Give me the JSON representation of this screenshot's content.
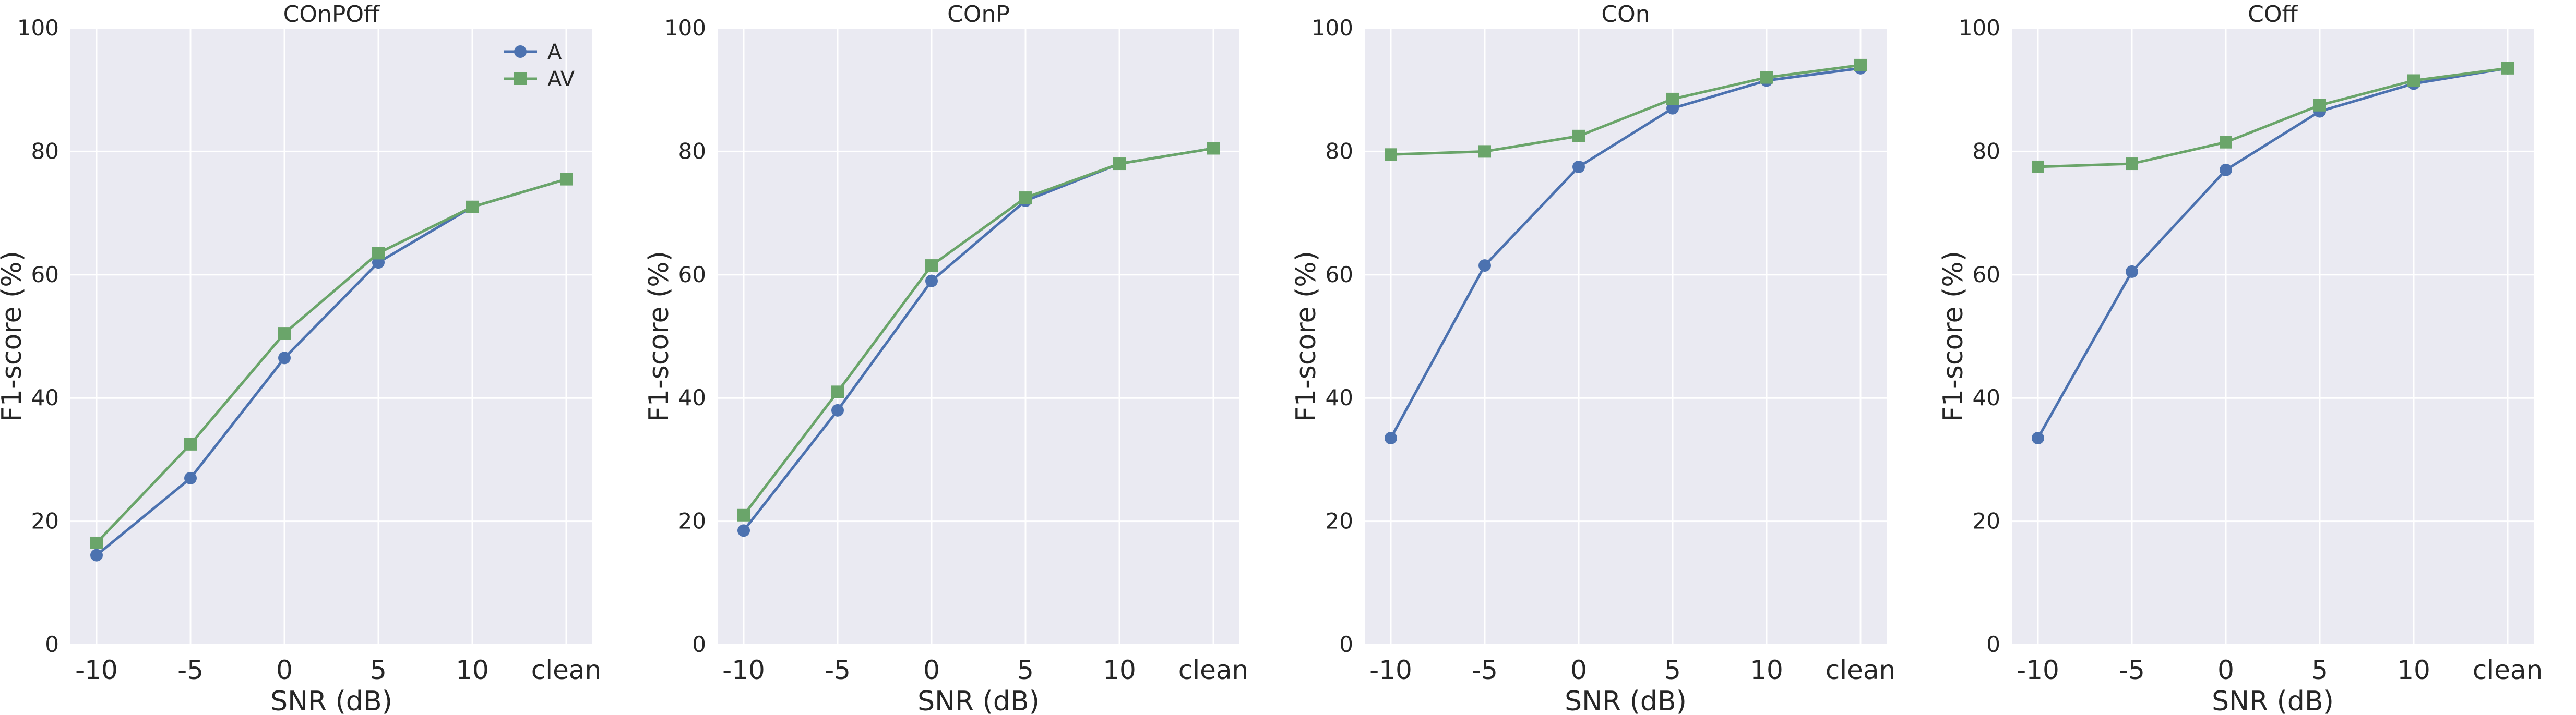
{
  "chart_data": [
    {
      "type": "line",
      "title": "COnPOff",
      "xlabel": "SNR (dB)",
      "ylabel": "F1-score (%)",
      "categories": [
        "-10",
        "-5",
        "0",
        "5",
        "10",
        "clean"
      ],
      "ylim": [
        0,
        100
      ],
      "yticks": [
        "0",
        "20",
        "40",
        "60",
        "80",
        "100"
      ],
      "grid": true,
      "legend": "top-right",
      "series": [
        {
          "name": "A",
          "marker": "circle",
          "color": "#4c72b0",
          "values": [
            14.5,
            27.0,
            46.5,
            62.0,
            71.0,
            75.5
          ]
        },
        {
          "name": "AV",
          "marker": "square",
          "color": "#6aa56a",
          "values": [
            16.5,
            32.5,
            50.5,
            63.5,
            71.0,
            75.5
          ]
        }
      ]
    },
    {
      "type": "line",
      "title": "COnP",
      "xlabel": "SNR (dB)",
      "ylabel": "F1-score (%)",
      "categories": [
        "-10",
        "-5",
        "0",
        "5",
        "10",
        "clean"
      ],
      "ylim": [
        0,
        100
      ],
      "yticks": [
        "0",
        "20",
        "40",
        "60",
        "80",
        "100"
      ],
      "grid": true,
      "series": [
        {
          "name": "A",
          "marker": "circle",
          "color": "#4c72b0",
          "values": [
            18.5,
            38.0,
            59.0,
            72.0,
            78.0,
            80.5
          ]
        },
        {
          "name": "AV",
          "marker": "square",
          "color": "#6aa56a",
          "values": [
            21.0,
            41.0,
            61.5,
            72.5,
            78.0,
            80.5
          ]
        }
      ]
    },
    {
      "type": "line",
      "title": "COn",
      "xlabel": "SNR (dB)",
      "ylabel": "F1-score (%)",
      "categories": [
        "-10",
        "-5",
        "0",
        "5",
        "10",
        "clean"
      ],
      "ylim": [
        0,
        100
      ],
      "yticks": [
        "0",
        "20",
        "40",
        "60",
        "80",
        "100"
      ],
      "grid": true,
      "series": [
        {
          "name": "A",
          "marker": "circle",
          "color": "#4c72b0",
          "values": [
            33.5,
            61.5,
            77.5,
            87.0,
            91.5,
            93.5
          ]
        },
        {
          "name": "AV",
          "marker": "square",
          "color": "#6aa56a",
          "values": [
            79.5,
            80.0,
            82.5,
            88.5,
            92.0,
            94.0
          ]
        }
      ]
    },
    {
      "type": "line",
      "title": "COff",
      "xlabel": "SNR (dB)",
      "ylabel": "F1-score (%)",
      "categories": [
        "-10",
        "-5",
        "0",
        "5",
        "10",
        "clean"
      ],
      "ylim": [
        0,
        100
      ],
      "yticks": [
        "0",
        "20",
        "40",
        "60",
        "80",
        "100"
      ],
      "grid": true,
      "series": [
        {
          "name": "A",
          "marker": "circle",
          "color": "#4c72b0",
          "values": [
            33.5,
            60.5,
            77.0,
            86.5,
            91.0,
            93.5
          ]
        },
        {
          "name": "AV",
          "marker": "square",
          "color": "#6aa56a",
          "values": [
            77.5,
            78.0,
            81.5,
            87.5,
            91.5,
            93.5
          ]
        }
      ]
    }
  ]
}
